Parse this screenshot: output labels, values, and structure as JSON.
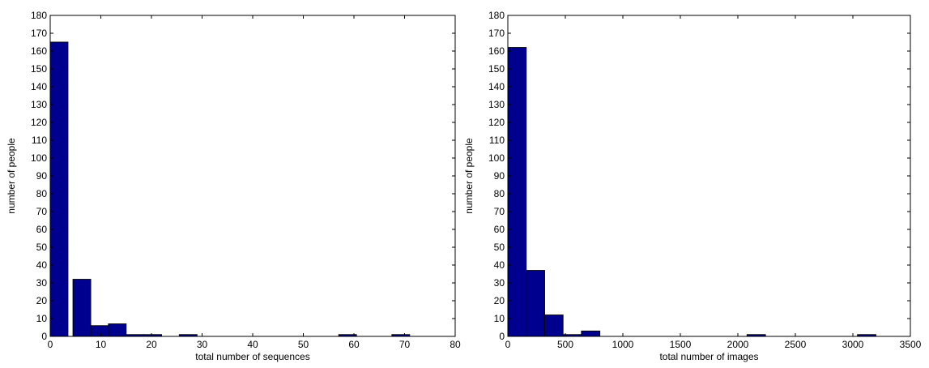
{
  "chart_data": [
    {
      "type": "bar",
      "xlabel": "total number of sequences",
      "ylabel": "number of people",
      "xlim": [
        0,
        80
      ],
      "ylim": [
        0,
        180
      ],
      "xticks": [
        0,
        10,
        20,
        30,
        40,
        50,
        60,
        70,
        80
      ],
      "yticks": [
        0,
        10,
        20,
        30,
        40,
        50,
        60,
        70,
        80,
        90,
        100,
        110,
        120,
        130,
        140,
        150,
        160,
        170,
        180
      ],
      "bin_width": 3.5,
      "bins": [
        {
          "start": 0,
          "value": 165
        },
        {
          "start": 4.5,
          "value": 32
        },
        {
          "start": 8,
          "value": 6
        },
        {
          "start": 11.5,
          "value": 7
        },
        {
          "start": 15,
          "value": 1
        },
        {
          "start": 18.5,
          "value": 1
        },
        {
          "start": 25.5,
          "value": 1
        },
        {
          "start": 57,
          "value": 1
        },
        {
          "start": 67.5,
          "value": 1
        }
      ],
      "bar_color": "#00008f",
      "grid": false
    },
    {
      "type": "bar",
      "xlabel": "total number of images",
      "ylabel": "number of people",
      "xlim": [
        0,
        3500
      ],
      "ylim": [
        0,
        180
      ],
      "xticks": [
        0,
        500,
        1000,
        1500,
        2000,
        2500,
        3000,
        3500
      ],
      "yticks": [
        0,
        10,
        20,
        30,
        40,
        50,
        60,
        70,
        80,
        90,
        100,
        110,
        120,
        130,
        140,
        150,
        160,
        170,
        180
      ],
      "bin_width": 160,
      "bins": [
        {
          "start": 0,
          "value": 162
        },
        {
          "start": 160,
          "value": 37
        },
        {
          "start": 320,
          "value": 12
        },
        {
          "start": 480,
          "value": 1
        },
        {
          "start": 640,
          "value": 3
        },
        {
          "start": 2080,
          "value": 1
        },
        {
          "start": 3040,
          "value": 1
        }
      ],
      "bar_color": "#00008f",
      "grid": false
    }
  ]
}
